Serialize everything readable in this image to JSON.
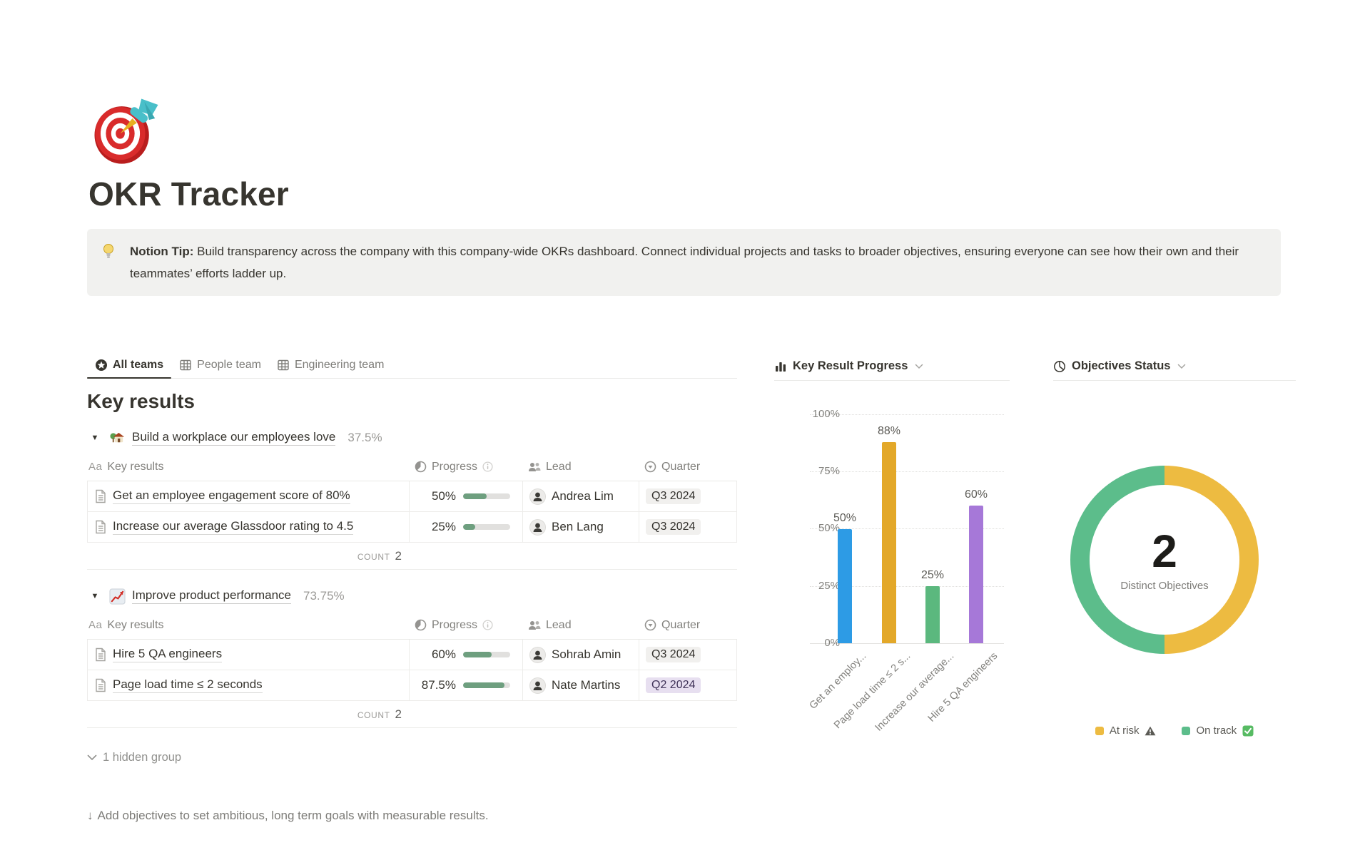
{
  "page": {
    "title": "OKR Tracker",
    "icon": "target-emoji",
    "callout": {
      "icon": "light-bulb-emoji",
      "label": "Notion Tip:",
      "text": " Build transparency across the company with this company-wide OKRs dashboard. Connect individual projects and tasks to broader objectives, ensuring everyone can see how their own and their teammates’ efforts ladder up."
    },
    "hidden_group": "1 hidden group",
    "footer_hint": "Add objectives to set ambitious, long term goals with measurable results."
  },
  "icons": {
    "toggle_open": "▼",
    "chevron_down": "⌄",
    "arrow_down": "↓"
  },
  "tabs": [
    {
      "label": "All teams",
      "icon": "star-view-icon",
      "active": true
    },
    {
      "label": "People team",
      "icon": "table-view-icon",
      "active": false
    },
    {
      "label": "Engineering team",
      "icon": "table-view-icon",
      "active": false
    }
  ],
  "section": {
    "title": "Key results"
  },
  "table": {
    "headers": {
      "title_icon": "Aa",
      "title": "Key results",
      "progress": "Progress",
      "lead": "Lead",
      "quarter": "Quarter"
    },
    "count_label": "COUNT",
    "groups": [
      {
        "icon": "house-with-garden-emoji",
        "name": "Build a workplace our employees love",
        "percent": "37.5%",
        "count": "2",
        "rows": [
          {
            "title": "Get an employee engagement score of 80%",
            "progress": "50%",
            "progress_value": 50,
            "lead": "Andrea Lim",
            "quarter": "Q3 2024",
            "quarter_color": "gray"
          },
          {
            "title": "Increase our average Glassdoor rating to 4.5",
            "progress": "25%",
            "progress_value": 25,
            "lead": "Ben Lang",
            "quarter": "Q3 2024",
            "quarter_color": "gray"
          }
        ]
      },
      {
        "icon": "chart-increasing-emoji",
        "name": "Improve product performance",
        "percent": "73.75%",
        "count": "2",
        "rows": [
          {
            "title": "Hire 5 QA engineers",
            "progress": "60%",
            "progress_value": 60,
            "lead": "Sohrab Amin",
            "quarter": "Q3 2024",
            "quarter_color": "gray"
          },
          {
            "title": "Page load time ≤ 2 seconds",
            "progress": "87.5%",
            "progress_value": 87.5,
            "lead": "Nate Martins",
            "quarter": "Q2 2024",
            "quarter_color": "purple"
          }
        ]
      }
    ]
  },
  "panels": {
    "bar_title": "Key Result Progress",
    "donut_title": "Objectives Status"
  },
  "chart_data": [
    {
      "type": "bar",
      "title": "Key Result Progress",
      "categories": [
        "Get an employee engagement score of 80%",
        "Page load time ≤ 2 seconds",
        "Increase our average Glassdoor rating to 4.5",
        "Hire 5 QA engineers"
      ],
      "x_tick_labels": [
        "Get an employ...",
        "Page load time ≤ 2 s...",
        "Increase our average...",
        "Hire 5 QA engineers"
      ],
      "values": [
        50,
        88,
        25,
        60
      ],
      "data_labels": [
        "50%",
        "88%",
        "25%",
        "60%"
      ],
      "colors": [
        "#2D9BE5",
        "#E3A829",
        "#5BB87E",
        "#A678D8"
      ],
      "ylim": [
        0,
        100
      ],
      "yticks": [
        "100%",
        "75%",
        "50%",
        "25%",
        "0%"
      ],
      "grid": "dotted horizontal",
      "legend": "none"
    },
    {
      "type": "donut",
      "title": "Objectives Status",
      "center_value": "2",
      "center_label": "Distinct Objectives",
      "slices": [
        {
          "label": "At risk",
          "value": 1,
          "color": "#EDBB41"
        },
        {
          "label": "On track",
          "value": 1,
          "color": "#5CBD8B"
        }
      ],
      "legend_position": "bottom"
    }
  ]
}
